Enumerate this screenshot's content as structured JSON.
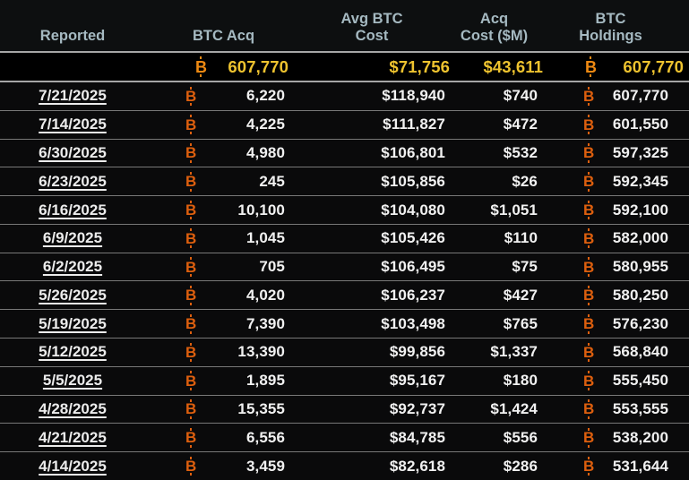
{
  "colors": {
    "page_bg": "#000000",
    "header_bg": "#0d0f10",
    "row_bg": "#0a0a0b",
    "summary_bg": "#000000",
    "header_text": "#a5b9c1",
    "value_text": "#f1f1f1",
    "date_link": "#ececec",
    "btc_orange": "#dd5f0e",
    "summary_btc_orange": "#ee8912",
    "summary_gold": "#eec32f",
    "row_separator": "#787878",
    "summary_separator": "#a6a6a6"
  },
  "icons": {
    "btc": "B"
  },
  "chart_data": {
    "type": "table",
    "columns": [
      "Reported",
      "BTC Acq",
      "Avg BTC\nCost",
      "Acq\nCost ($M)",
      "BTC\nHoldings"
    ],
    "summary": {
      "btc_acq": "607,770",
      "avg_btc_cost": "$71,756",
      "acq_cost_m": "$43,611",
      "btc_holdings": "607,770"
    },
    "rows": [
      {
        "date": "7/21/2025",
        "btc_acq": "6,220",
        "avg_btc_cost": "$118,940",
        "acq_cost_m": "$740",
        "btc_holdings": "607,770"
      },
      {
        "date": "7/14/2025",
        "btc_acq": "4,225",
        "avg_btc_cost": "$111,827",
        "acq_cost_m": "$472",
        "btc_holdings": "601,550"
      },
      {
        "date": "6/30/2025",
        "btc_acq": "4,980",
        "avg_btc_cost": "$106,801",
        "acq_cost_m": "$532",
        "btc_holdings": "597,325"
      },
      {
        "date": "6/23/2025",
        "btc_acq": "245",
        "avg_btc_cost": "$105,856",
        "acq_cost_m": "$26",
        "btc_holdings": "592,345"
      },
      {
        "date": "6/16/2025",
        "btc_acq": "10,100",
        "avg_btc_cost": "$104,080",
        "acq_cost_m": "$1,051",
        "btc_holdings": "592,100"
      },
      {
        "date": "6/9/2025",
        "btc_acq": "1,045",
        "avg_btc_cost": "$105,426",
        "acq_cost_m": "$110",
        "btc_holdings": "582,000"
      },
      {
        "date": "6/2/2025",
        "btc_acq": "705",
        "avg_btc_cost": "$106,495",
        "acq_cost_m": "$75",
        "btc_holdings": "580,955"
      },
      {
        "date": "5/26/2025",
        "btc_acq": "4,020",
        "avg_btc_cost": "$106,237",
        "acq_cost_m": "$427",
        "btc_holdings": "580,250"
      },
      {
        "date": "5/19/2025",
        "btc_acq": "7,390",
        "avg_btc_cost": "$103,498",
        "acq_cost_m": "$765",
        "btc_holdings": "576,230"
      },
      {
        "date": "5/12/2025",
        "btc_acq": "13,390",
        "avg_btc_cost": "$99,856",
        "acq_cost_m": "$1,337",
        "btc_holdings": "568,840"
      },
      {
        "date": "5/5/2025",
        "btc_acq": "1,895",
        "avg_btc_cost": "$95,167",
        "acq_cost_m": "$180",
        "btc_holdings": "555,450"
      },
      {
        "date": "4/28/2025",
        "btc_acq": "15,355",
        "avg_btc_cost": "$92,737",
        "acq_cost_m": "$1,424",
        "btc_holdings": "553,555"
      },
      {
        "date": "4/21/2025",
        "btc_acq": "6,556",
        "avg_btc_cost": "$84,785",
        "acq_cost_m": "$556",
        "btc_holdings": "538,200"
      },
      {
        "date": "4/14/2025",
        "btc_acq": "3,459",
        "avg_btc_cost": "$82,618",
        "acq_cost_m": "$286",
        "btc_holdings": "531,644"
      }
    ]
  }
}
